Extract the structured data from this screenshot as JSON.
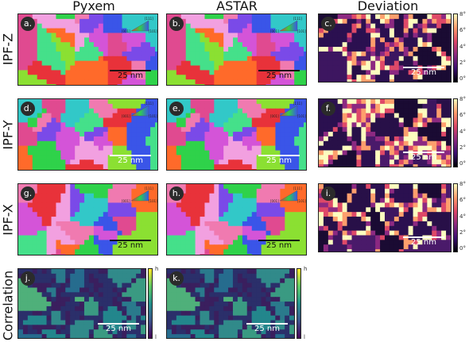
{
  "columns": {
    "pyxem": "Pyxem",
    "astar": "ASTAR",
    "deviation": "Deviation"
  },
  "rows": {
    "z": "IPF-Z",
    "y": "IPF-Y",
    "x": "IPF-X",
    "corr": "Correlation"
  },
  "panel_labels": {
    "a": "a.",
    "b": "b.",
    "c": "c.",
    "d": "d.",
    "e": "e.",
    "f": "f.",
    "g": "g.",
    "h": "h.",
    "i": "i.",
    "j": "j.",
    "k": "k."
  },
  "scalebar": "25 nm",
  "ipf_key": {
    "top": "[111]",
    "left": "[001]",
    "right": "[101]"
  },
  "deviation_ticks": [
    "8°",
    "6°",
    "4°",
    "2°",
    "0°"
  ],
  "correlation_ticks": {
    "high": "h",
    "low": "l"
  },
  "colors": {
    "deviation_map": "magma",
    "correlation_map": "viridis"
  }
}
